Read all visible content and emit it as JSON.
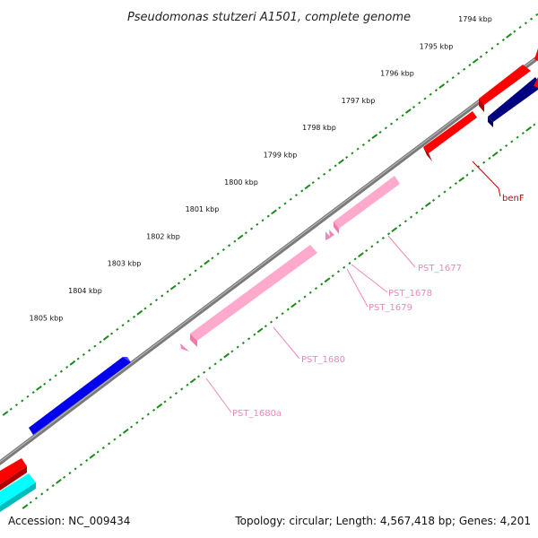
{
  "title": "Pseudomonas stutzeri A1501, complete genome",
  "ruler_labels": [
    "1794 kbp",
    "1795 kbp",
    "1796 kbp",
    "1797 kbp",
    "1798 kbp",
    "1799 kbp",
    "1800 kbp",
    "1801 kbp",
    "1802 kbp",
    "1803 kbp",
    "1804 kbp",
    "1805 kbp"
  ],
  "genes": [
    {
      "label": "benF",
      "color": "#cc0000"
    },
    {
      "label": "PST_1677",
      "color": "#ee88bb"
    },
    {
      "label": "PST_1678",
      "color": "#ee88bb"
    },
    {
      "label": "PST_1679",
      "color": "#ee88bb"
    },
    {
      "label": "PST_1680",
      "color": "#ee88bb"
    },
    {
      "label": "PST_1680a",
      "color": "#ee88bb"
    }
  ],
  "feature_colors": {
    "red": "#ff0000",
    "blue": "#0000ee",
    "navy": "#000080",
    "pink": "#ffaacc",
    "cyan": "#00ffff",
    "backbone": "#7a7a7a",
    "ticks": "#1a8a1a"
  },
  "footer": {
    "accession": "Accession: NC_009434",
    "summary": "Topology: circular; Length: 4,567,418 bp; Genes: 4,201"
  }
}
